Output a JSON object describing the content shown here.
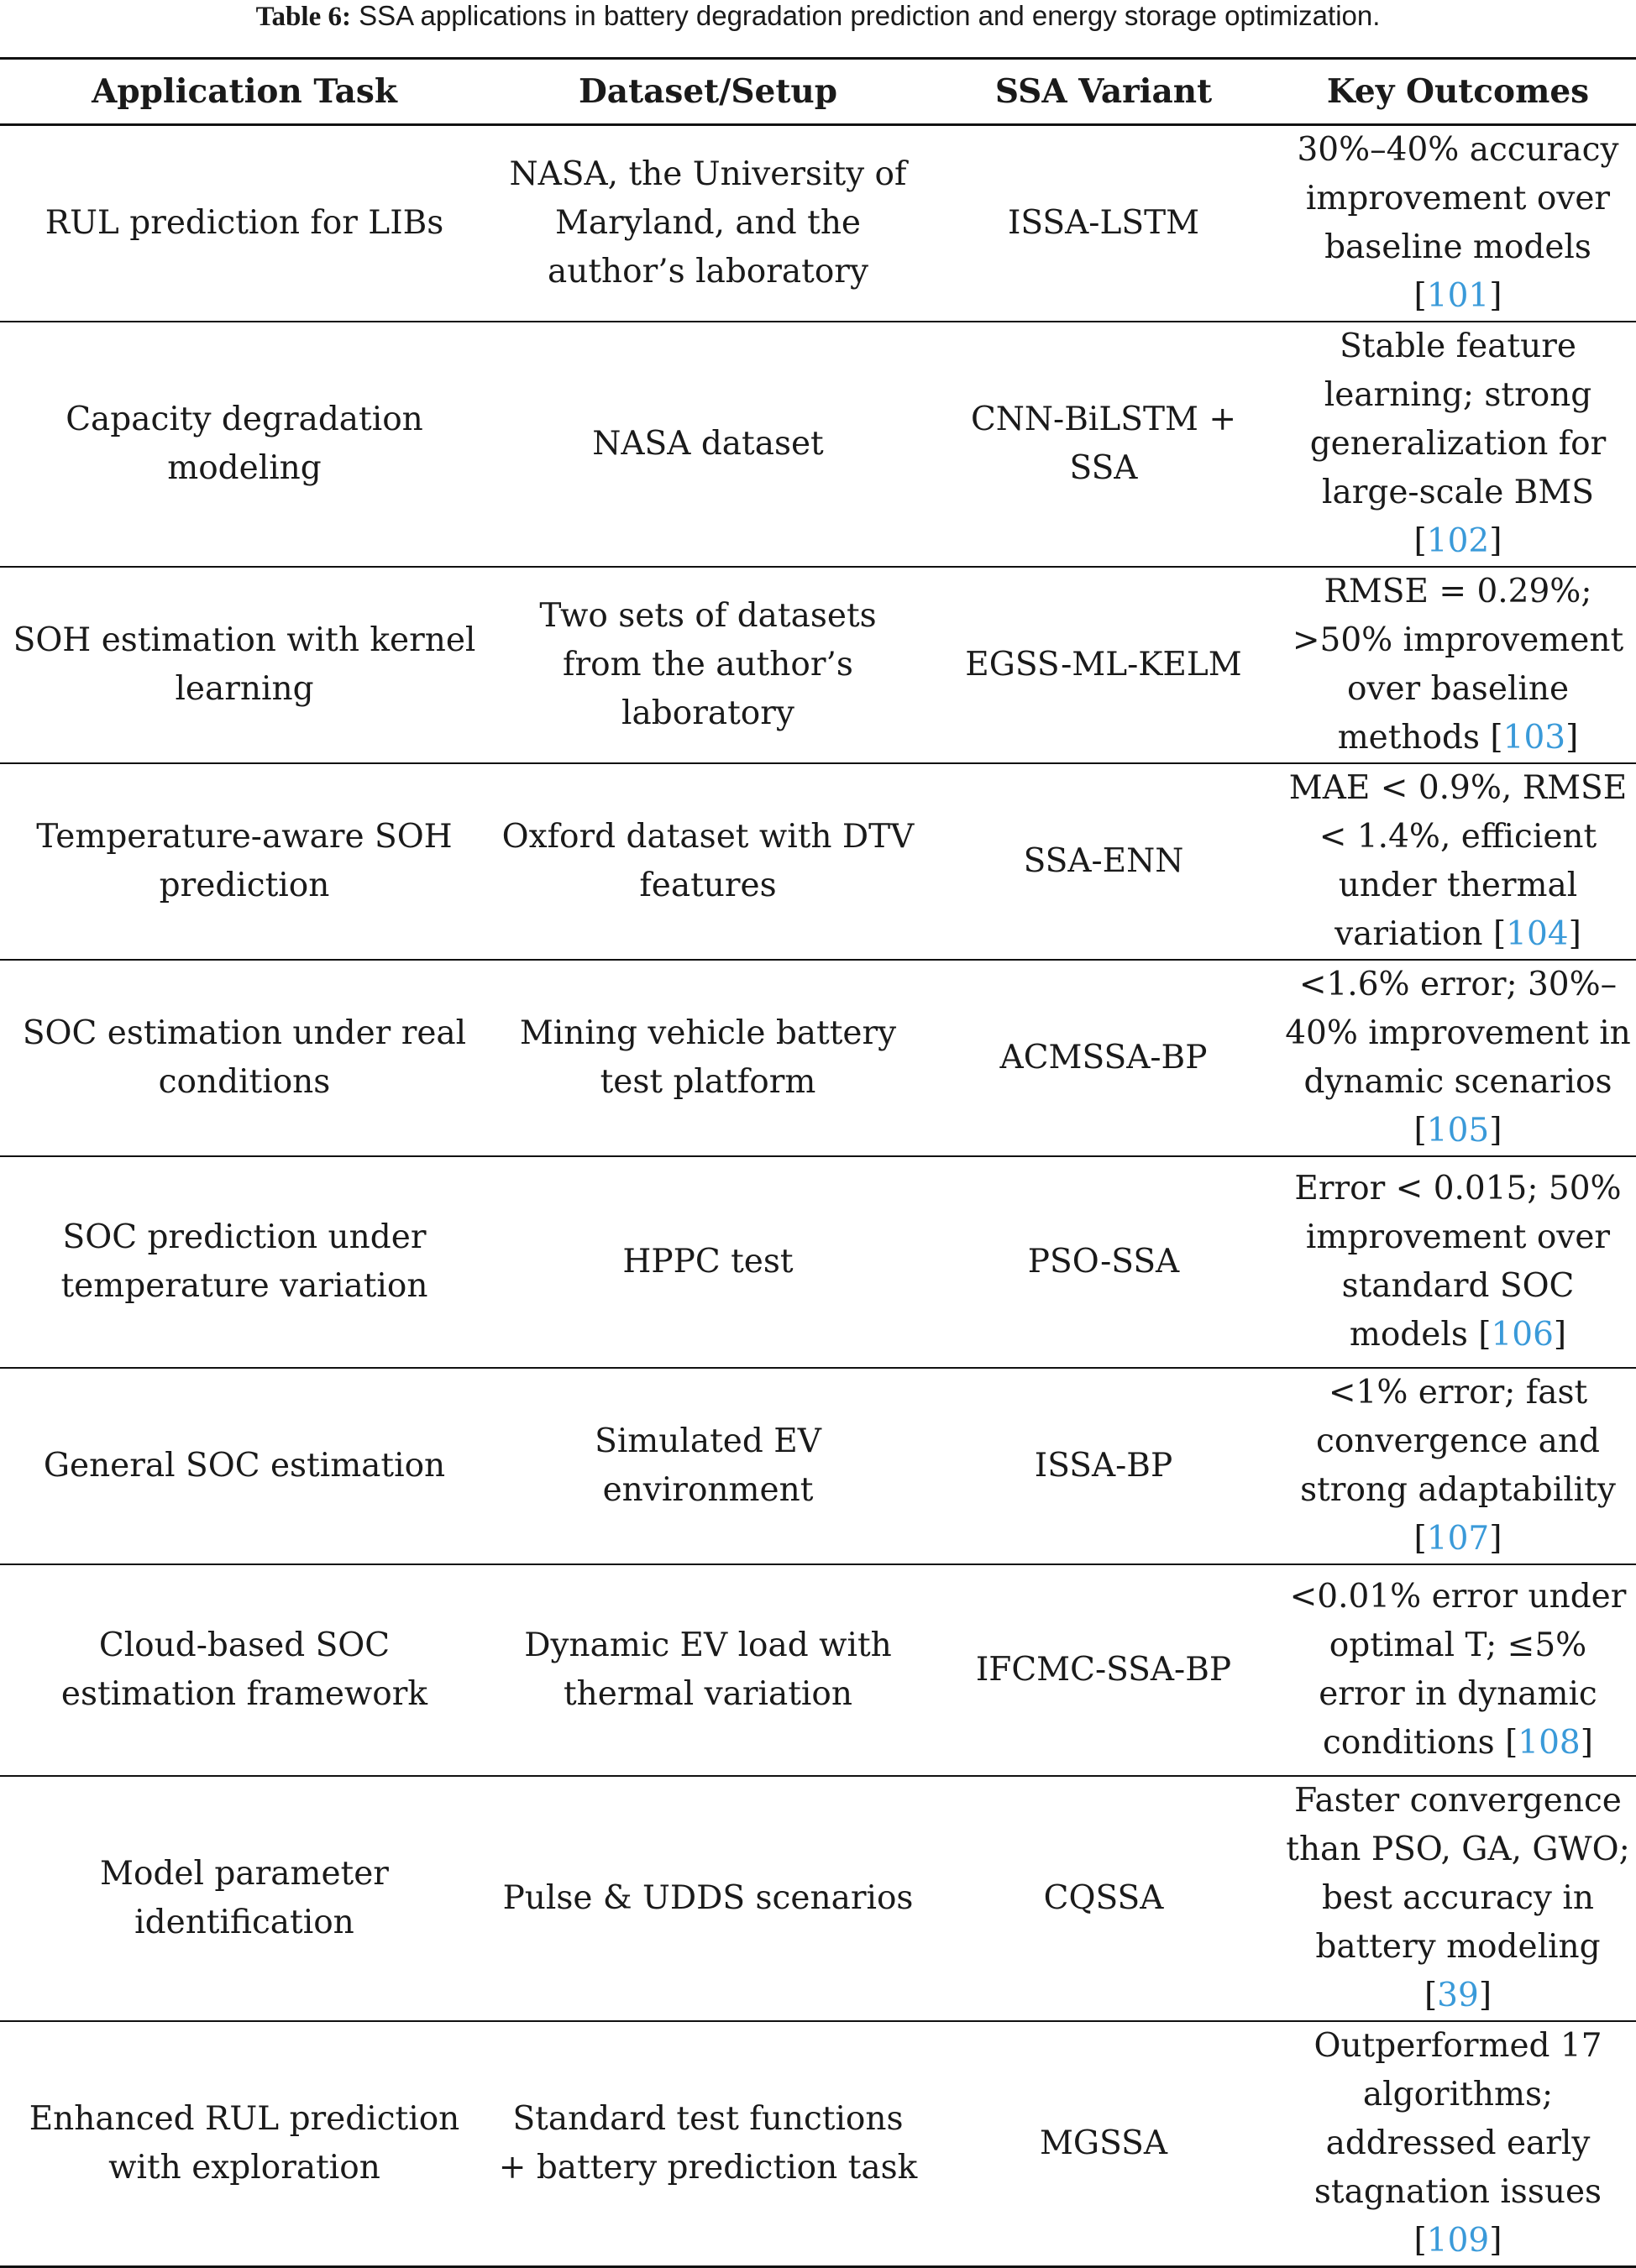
{
  "caption": {
    "label": "Table 6:",
    "text": "SSA applications in battery degradation prediction and energy storage optimization."
  },
  "columns": [
    "Application Task",
    "Dataset/Setup",
    "SSA Variant",
    "Key Outcomes"
  ],
  "rows": [
    {
      "task": "RUL prediction for LIBs",
      "dataset": "NASA, the University of Maryland, and the author’s laboratory",
      "variant": "ISSA-LSTM",
      "outcome": "30%–40% accuracy improvement over baseline models",
      "ref": "101"
    },
    {
      "task": "Capacity degradation modeling",
      "dataset": "NASA dataset",
      "variant": "CNN-BiLSTM + SSA",
      "outcome": "Stable feature learning; strong generalization for large-scale BMS",
      "ref": "102"
    },
    {
      "task": "SOH estimation with kernel learning",
      "dataset": "Two sets of datasets from the author’s laboratory",
      "variant": "EGSS-ML-KELM",
      "outcome": "RMSE = 0.29%; >50% improvement over baseline methods",
      "ref": "103"
    },
    {
      "task": "Temperature-aware SOH prediction",
      "dataset": "Oxford dataset with DTV features",
      "variant": "SSA-ENN",
      "outcome": "MAE < 0.9%, RMSE < 1.4%, efficient under thermal variation",
      "ref": "104"
    },
    {
      "task": "SOC estimation under real conditions",
      "dataset": "Mining vehicle battery test platform",
      "variant": "ACMSSA-BP",
      "outcome": "<1.6% error; 30%–40% improvement in dynamic scenarios",
      "ref": "105"
    },
    {
      "task": "SOC prediction under temperature variation",
      "dataset": "HPPC test",
      "variant": "PSO-SSA",
      "outcome": "Error < 0.015; 50% improvement over standard SOC models",
      "ref": "106"
    },
    {
      "task": "General SOC estimation",
      "dataset": "Simulated EV environment",
      "variant": "ISSA-BP",
      "outcome": "<1% error; fast convergence and strong adaptability",
      "ref": "107"
    },
    {
      "task": "Cloud-based SOC estimation framework",
      "dataset": "Dynamic EV load with thermal variation",
      "variant": "IFCMC-SSA-BP",
      "outcome": "<0.01% error under optimal T; ≤5% error in dynamic conditions",
      "ref": "108"
    },
    {
      "task": "Model parameter identification",
      "dataset": "Pulse & UDDS scenarios",
      "variant": "CQSSA",
      "outcome": "Faster convergence than PSO, GA, GWO; best accuracy in battery modeling",
      "ref": "39"
    },
    {
      "task": "Enhanced RUL prediction with exploration",
      "dataset": "Standard test functions + battery prediction task",
      "variant": "MGSSA",
      "outcome": "Outperformed 17 algorithms; addressed early stagnation issues",
      "ref": "109"
    }
  ]
}
